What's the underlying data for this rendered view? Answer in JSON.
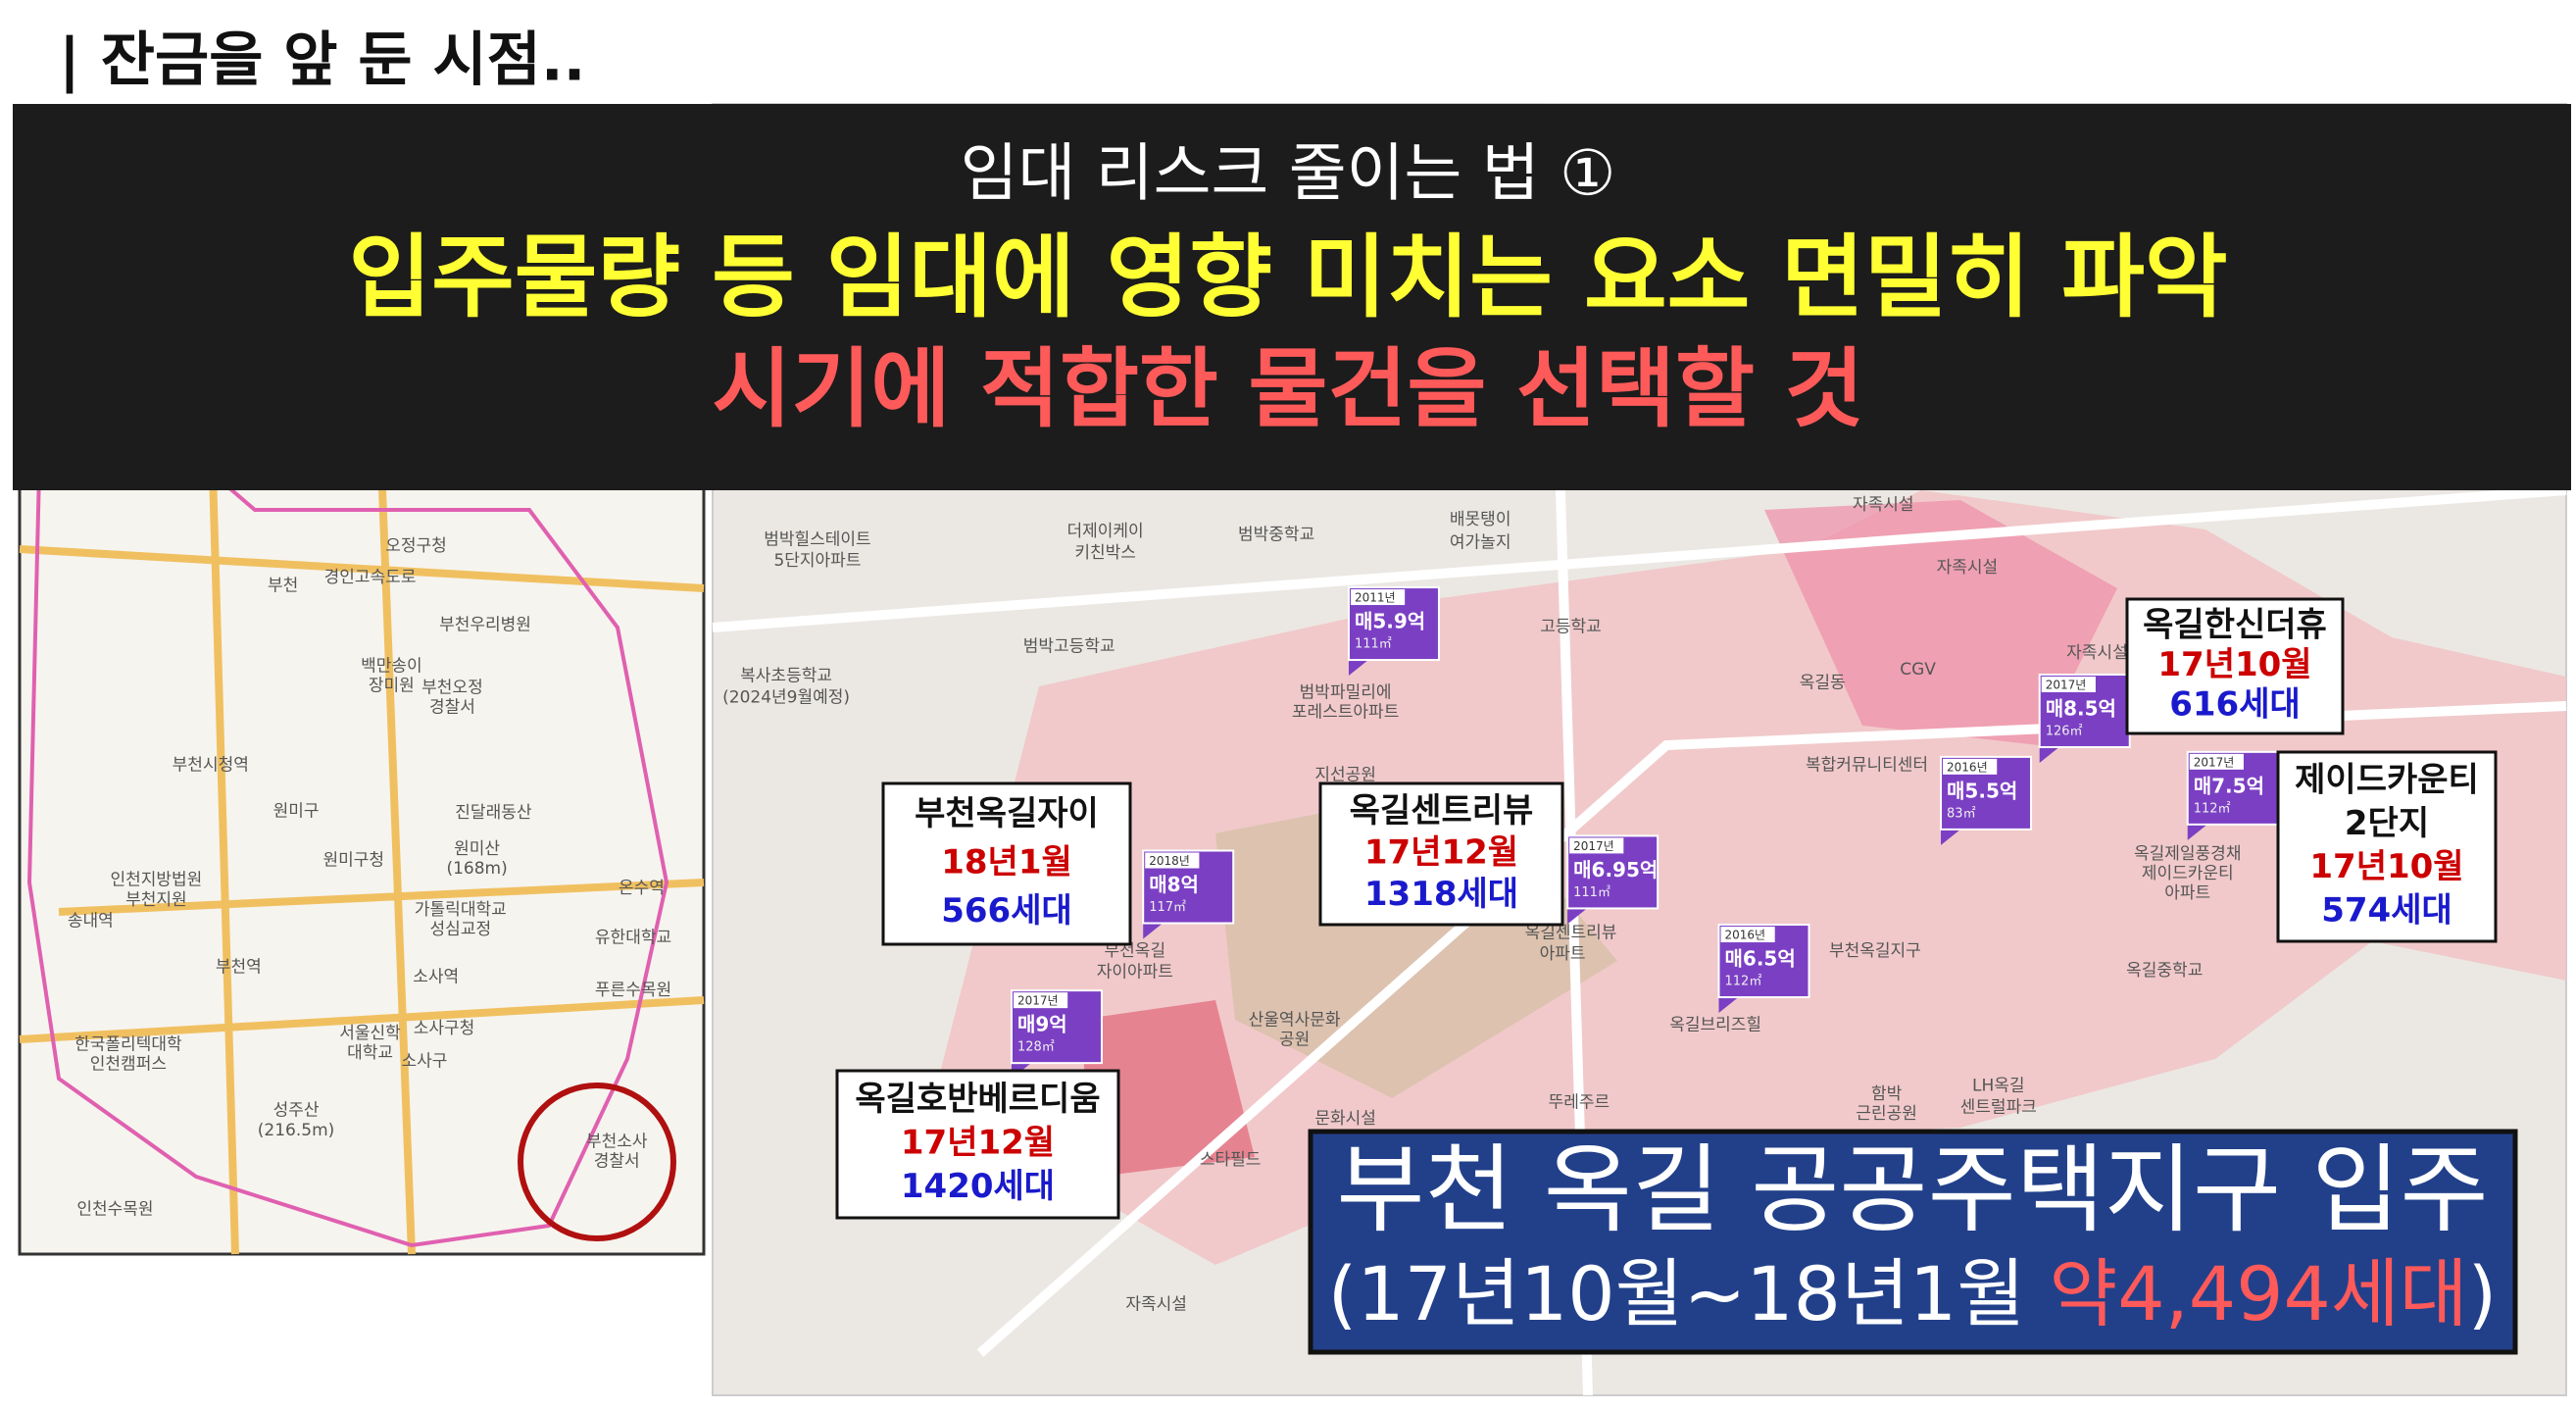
{
  "header": {
    "title": "| 잔금을 앞 둔 시점.."
  },
  "banner": {
    "subtitle": "임대 리스크 줄이는 법 ①",
    "line1": "입주물량 등 임대에 영향 미치는 요소 면밀히 파악",
    "line2": "시기에 적합한 물건을 선택할 것"
  },
  "callouts": [
    {
      "name": [
        "부천옥길자이"
      ],
      "date": "18년1월",
      "units": "566세대"
    },
    {
      "name": [
        "옥길센트리뷰"
      ],
      "date": "17년12월",
      "units": "1318세대"
    },
    {
      "name": [
        "옥길한신더휴"
      ],
      "date": "17년10월",
      "units": "616세대"
    },
    {
      "name": [
        "제이드카운티",
        "2단지"
      ],
      "date": "17년10월",
      "units": "574세대"
    },
    {
      "name": [
        "옥길호반베르디움"
      ],
      "date": "17년12월",
      "units": "1420세대"
    }
  ],
  "badges": [
    {
      "year": "2018년",
      "price": "매8억",
      "area": "117㎡"
    },
    {
      "year": "2017년",
      "price": "매6.95억",
      "area": "111㎡"
    },
    {
      "year": "2016년",
      "price": "매6.5억",
      "area": "112㎡"
    },
    {
      "year": "2017년",
      "price": "매9억",
      "area": "128㎡"
    },
    {
      "year": "2011년",
      "price": "매5.9억",
      "area": "111㎡"
    },
    {
      "year": "2017년",
      "price": "매8.5억",
      "area": "126㎡"
    },
    {
      "year": "2016년",
      "price": "매5.5억",
      "area": "83㎡"
    },
    {
      "year": "2017년",
      "price": "매7.5억",
      "area": "112㎡"
    }
  ],
  "summary": {
    "title": "부천 옥길 공공주택지구 입주",
    "period": "(17년10월~18년1월 ",
    "total": "약4,494세대",
    "close": ")"
  },
  "map_labels": {
    "right": [
      "범박힐스테이트",
      "5단지아파트",
      "더제이케이",
      "키친박스",
      "범박중학교",
      "배못탱이",
      "여가놀지",
      "범박고등학교",
      "고등학교",
      "복사초등학교",
      "(2024년9월예정)",
      "범박파밀리에",
      "포레스트아파트",
      "지선공원",
      "옥길동",
      "CGV",
      "복합커뮤니티센터",
      "자족시설",
      "자족시설",
      "자족시설",
      "부천옥길",
      "자이아파트",
      "옥길센트리뷰",
      "아파트",
      "부천옥길지구",
      "옥길브리즈힐",
      "산울역사문화",
      "공원",
      "옥길제일풍경채",
      "제이드카운티",
      "아파트",
      "옥길중학교",
      "함박",
      "근린공원",
      "LH옥길",
      "센트럴파크",
      "뚜레주르",
      "문화시설",
      "스타필드",
      "자족시설"
    ],
    "left": [
      "오정구청",
      "부천",
      "경인고속도로",
      "부천우리병원",
      "백만송이",
      "장미원",
      "부천오정",
      "경찰서",
      "부천시청역",
      "원미구",
      "원미구청",
      "인천지방법원",
      "부천지원",
      "송내역",
      "부천역",
      "진달래동산",
      "원미산",
      "(168m)",
      "가톨릭대학교",
      "성심교정",
      "온수역",
      "유한대학교",
      "소사역",
      "푸른수목원",
      "서울신학",
      "대학교",
      "소사구청",
      "소사구",
      "한국폴리텍대학",
      "인천캠퍼스",
      "성주산",
      "(216.5m)",
      "부천소사",
      "경찰서",
      "인천수목원"
    ]
  }
}
